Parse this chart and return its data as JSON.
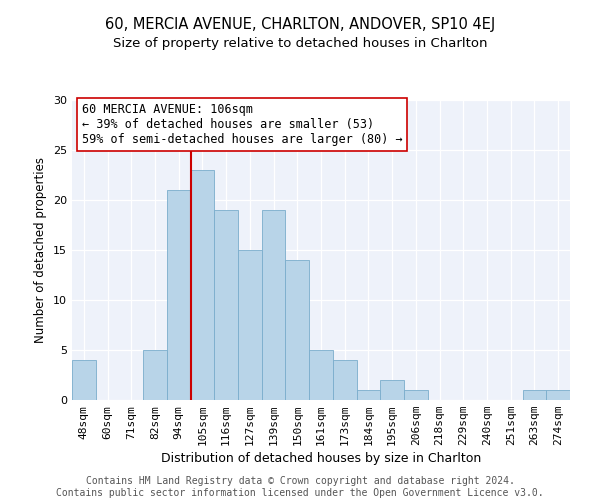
{
  "title": "60, MERCIA AVENUE, CHARLTON, ANDOVER, SP10 4EJ",
  "subtitle": "Size of property relative to detached houses in Charlton",
  "xlabel": "Distribution of detached houses by size in Charlton",
  "ylabel": "Number of detached properties",
  "bin_labels": [
    "48sqm",
    "60sqm",
    "71sqm",
    "82sqm",
    "94sqm",
    "105sqm",
    "116sqm",
    "127sqm",
    "139sqm",
    "150sqm",
    "161sqm",
    "173sqm",
    "184sqm",
    "195sqm",
    "206sqm",
    "218sqm",
    "229sqm",
    "240sqm",
    "251sqm",
    "263sqm",
    "274sqm"
  ],
  "counts": [
    4,
    0,
    0,
    5,
    21,
    23,
    19,
    15,
    19,
    14,
    5,
    4,
    1,
    2,
    1,
    0,
    0,
    0,
    0,
    1,
    1
  ],
  "bar_color": "#b8d4e8",
  "bar_edge_color": "#7aadcc",
  "highlight_line_color": "#cc0000",
  "annotation_text": "60 MERCIA AVENUE: 106sqm\n← 39% of detached houses are smaller (53)\n59% of semi-detached houses are larger (80) →",
  "annotation_box_color": "#ffffff",
  "annotation_box_edge": "#cc0000",
  "ylim": [
    0,
    30
  ],
  "yticks": [
    0,
    5,
    10,
    15,
    20,
    25,
    30
  ],
  "footer_text": "Contains HM Land Registry data © Crown copyright and database right 2024.\nContains public sector information licensed under the Open Government Licence v3.0.",
  "title_fontsize": 10.5,
  "subtitle_fontsize": 9.5,
  "xlabel_fontsize": 9,
  "ylabel_fontsize": 8.5,
  "tick_fontsize": 8,
  "annotation_fontsize": 8.5,
  "footer_fontsize": 7,
  "background_color": "#eef2fa"
}
